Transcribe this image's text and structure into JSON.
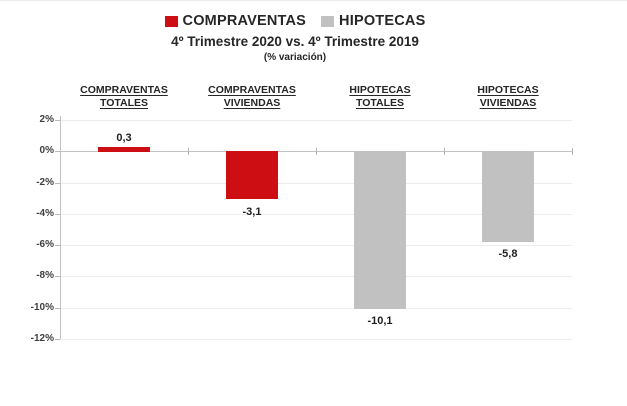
{
  "chart_data": {
    "type": "bar",
    "title": "4º Trimestre 2020  vs. 4º Trimestre 2019",
    "subtitle": "(% variación)",
    "legend": [
      {
        "label": "COMPRAVENTAS",
        "color": "#cd0e13"
      },
      {
        "label": "HIPOTECAS",
        "color": "#c1c1c1"
      }
    ],
    "legend_position": "top",
    "categories": [
      "COMPRAVENTAS TOTALES",
      "COMPRAVENTAS VIVIENDAS",
      "HIPOTECAS TOTALES",
      "HIPOTECAS VIVIENDAS"
    ],
    "values": [
      0.3,
      -3.1,
      -10.1,
      -5.8
    ],
    "value_labels": [
      "0,3",
      "-3,1",
      "-10,1",
      "-5,8"
    ],
    "bar_colors": [
      "#cd0e13",
      "#cd0e13",
      "#c1c1c1",
      "#c1c1c1"
    ],
    "xlabel": "",
    "ylabel": "",
    "ylim": [
      -12,
      2
    ],
    "yticks": [
      2,
      0,
      -2,
      -4,
      -6,
      -8,
      -10,
      -12
    ],
    "ytick_labels": [
      "2%",
      "0%",
      "-2%",
      "-4%",
      "-6%",
      "-8%",
      "-10%",
      "-12%"
    ],
    "grid": true
  }
}
